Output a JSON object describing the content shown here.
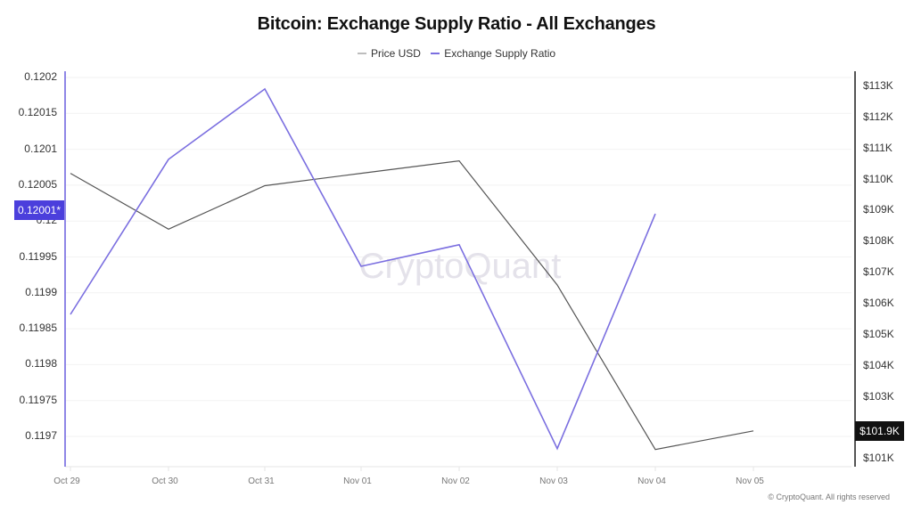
{
  "header": {
    "title": "Bitcoin: Exchange Supply Ratio - All Exchanges"
  },
  "legend": {
    "items": [
      {
        "label": "Price USD",
        "color": "#bdbdbd"
      },
      {
        "label": "Exchange Supply Ratio",
        "color": "#7b6fe0"
      }
    ]
  },
  "axes": {
    "left_ticks": [
      "0.1202",
      "0.12015",
      "0.1201",
      "0.12005",
      "0.12",
      "0.11995",
      "0.1199",
      "0.11985",
      "0.1198",
      "0.11975",
      "0.1197"
    ],
    "right_ticks": [
      "$113K",
      "$112K",
      "$111K",
      "$110K",
      "$109K",
      "$108K",
      "$107K",
      "$106K",
      "$105K",
      "$104K",
      "$103K",
      "$101K"
    ],
    "x_ticks": [
      "Oct 29",
      "Oct 30",
      "Oct 31",
      "Nov 01",
      "Nov 02",
      "Nov 03",
      "Nov 04",
      "Nov 05"
    ]
  },
  "badges": {
    "left_value": "0.12001*",
    "left_color": "#4b3fdc",
    "right_value": "$101.9K",
    "right_color": "#111111"
  },
  "watermark": "CryptoQuant",
  "footer": {
    "copyright": "© CryptoQuant. All rights reserved"
  },
  "chart_data": {
    "type": "line",
    "title": "Bitcoin: Exchange Supply Ratio - All Exchanges",
    "x": [
      "Oct 29",
      "Oct 30",
      "Oct 31",
      "Nov 01",
      "Nov 02",
      "Nov 03",
      "Nov 04",
      "Nov 05"
    ],
    "series": [
      {
        "name": "Exchange Supply Ratio",
        "axis": "left",
        "color": "#7b6fe0",
        "values": [
          0.11987,
          0.120086,
          0.120184,
          0.119937,
          0.119967,
          0.119683,
          0.12001,
          null
        ]
      },
      {
        "name": "Price USD",
        "axis": "right",
        "color": "#555555",
        "values": [
          110200,
          108400,
          109800,
          110200,
          110600,
          106600,
          101300,
          101900
        ]
      }
    ],
    "ylabel_left": "",
    "ylabel_right": "",
    "ylim_left": [
      0.11966,
      0.12022
    ],
    "ylim_right": [
      101000,
      113200
    ],
    "grid": true,
    "legend_position": "top",
    "last_values": {
      "Exchange Supply Ratio": "0.12001*",
      "Price USD": "$101.9K"
    }
  }
}
